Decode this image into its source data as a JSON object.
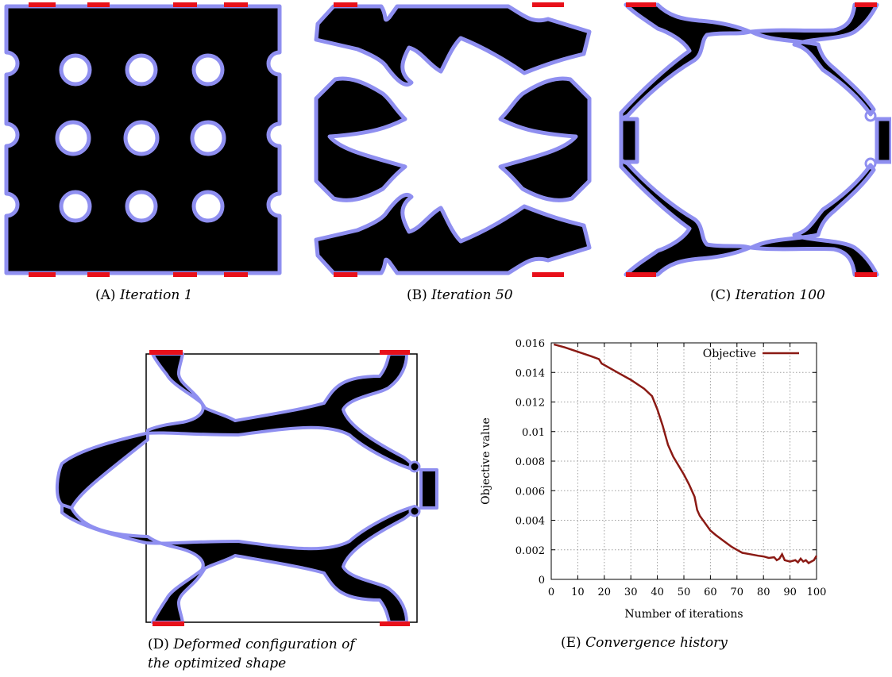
{
  "colors": {
    "material": "#000000",
    "boundary": "#8f8ff0",
    "support": "#e8101a",
    "curve": "#8b1a14",
    "grid": "#a0a0a0"
  },
  "panels": {
    "a": {
      "label": "(A)",
      "caption": "Iteration 1"
    },
    "b": {
      "label": "(B)",
      "caption": "Iteration 50"
    },
    "c": {
      "label": "(C)",
      "caption": "Iteration 100"
    },
    "d": {
      "label": "(D)",
      "caption_line1": "Deformed configuration of",
      "caption_line2": "the optimized shape"
    },
    "e": {
      "label": "(E)",
      "caption": "Convergence history"
    }
  },
  "chart_data": {
    "type": "line",
    "xlabel": "Number of iterations",
    "ylabel": "Objective value",
    "xlim": [
      0,
      100
    ],
    "ylim": [
      0,
      0.016
    ],
    "xticks": [
      "0",
      "10",
      "20",
      "30",
      "40",
      "50",
      "60",
      "70",
      "80",
      "90",
      "100"
    ],
    "yticks": [
      "0",
      "0.002",
      "0.004",
      "0.006",
      "0.008",
      "0.01",
      "0.012",
      "0.014",
      "0.016"
    ],
    "grid": true,
    "legend_position": "top-right",
    "series": [
      {
        "name": "Objective",
        "x": [
          1,
          5,
          10,
          15,
          18,
          19,
          20,
          25,
          30,
          35,
          38,
          40,
          42,
          44,
          46,
          48,
          50,
          52,
          54,
          55,
          56,
          58,
          60,
          62,
          65,
          68,
          70,
          72,
          75,
          78,
          80,
          82,
          84,
          85,
          86,
          87,
          88,
          90,
          92,
          93,
          94,
          95,
          96,
          97,
          98,
          99,
          100
        ],
        "y": [
          0.0159,
          0.0157,
          0.0154,
          0.0151,
          0.0149,
          0.0146,
          0.0145,
          0.014,
          0.0135,
          0.0129,
          0.0124,
          0.0115,
          0.0104,
          0.0091,
          0.0083,
          0.0077,
          0.0071,
          0.0064,
          0.0056,
          0.0047,
          0.0043,
          0.0038,
          0.0033,
          0.003,
          0.0026,
          0.0022,
          0.002,
          0.0018,
          0.0017,
          0.0016,
          0.00155,
          0.00145,
          0.0015,
          0.0013,
          0.0014,
          0.0017,
          0.0013,
          0.0012,
          0.0013,
          0.00115,
          0.0014,
          0.0012,
          0.0013,
          0.0011,
          0.0012,
          0.0013,
          0.0016
        ]
      }
    ]
  }
}
